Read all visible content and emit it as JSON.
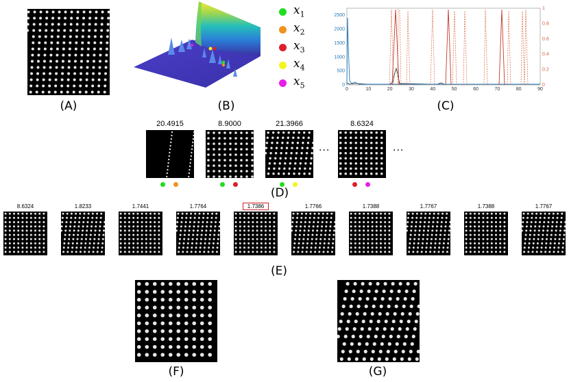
{
  "captions": {
    "A": "(A)",
    "B": "(B)",
    "C": "(C)",
    "D": "(D)",
    "E": "(E)",
    "F": "(F)",
    "G": "(G)"
  },
  "legend": [
    {
      "base": "x",
      "sub": "1",
      "color": "#22dd22"
    },
    {
      "base": "x",
      "sub": "2",
      "color": "#f0921e"
    },
    {
      "base": "x",
      "sub": "3",
      "color": "#dd1e2e"
    },
    {
      "base": "x",
      "sub": "4",
      "color": "#f4f41e"
    },
    {
      "base": "x",
      "sub": "5",
      "color": "#e81ee8"
    }
  ],
  "panel_c": {
    "x_ticks": [
      "0",
      "10",
      "20",
      "30",
      "40",
      "50",
      "60",
      "70",
      "80",
      "90"
    ],
    "y_left_ticks": [
      "0",
      "500",
      "1000",
      "1500",
      "2000",
      "2500"
    ],
    "y_right_ticks": [
      "0",
      "0.2",
      "0.4",
      "0.6",
      "0.8",
      "1"
    ],
    "left_color": "#1f77b4",
    "right_color": "#d4623a"
  },
  "panel_d": {
    "scores": [
      "20.4915",
      "8.9000",
      "21.3966",
      "8.6324"
    ],
    "ellipsis": "...",
    "dots": [
      [
        "#22dd22",
        "#f0921e"
      ],
      [
        "#22dd22",
        "#dd1e2e"
      ],
      [
        "#22dd22",
        "#f4f41e"
      ],
      [
        "#dd1e2e",
        "#e81ee8"
      ]
    ]
  },
  "panel_e": {
    "scores": [
      "8.6324",
      "1.8233",
      "1.7441",
      "1.7764",
      "1.7386",
      "1.7766",
      "1.7388",
      "1.7767",
      "1.7388",
      "1.7767"
    ],
    "selected_index": 4,
    "highlight_color": "#d21e1e"
  }
}
